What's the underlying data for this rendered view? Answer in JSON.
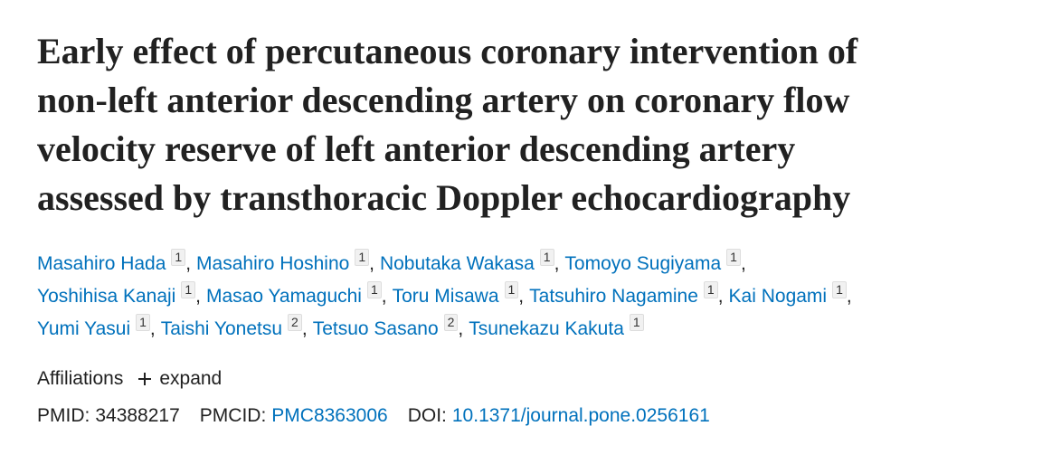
{
  "article": {
    "title_lines": [
      "Early effect of percutaneous coronary intervention of",
      "non-left anterior descending artery on coronary flow",
      "velocity reserve of left anterior descending artery",
      "assessed by transthoracic Doppler echocardiography"
    ],
    "author_separator": ",",
    "author_lines": [
      [
        {
          "name": "Masahiro Hada",
          "affiliation": 1
        },
        {
          "name": "Masahiro Hoshino",
          "affiliation": 1
        },
        {
          "name": "Nobutaka Wakasa",
          "affiliation": 1
        },
        {
          "name": "Tomoyo Sugiyama",
          "affiliation": 1
        }
      ],
      [
        {
          "name": "Yoshihisa Kanaji",
          "affiliation": 1
        },
        {
          "name": "Masao Yamaguchi",
          "affiliation": 1
        },
        {
          "name": "Toru Misawa",
          "affiliation": 1
        },
        {
          "name": "Tatsuhiro Nagamine",
          "affiliation": 1
        },
        {
          "name": "Kai Nogami",
          "affiliation": 1
        }
      ],
      [
        {
          "name": "Yumi Yasui",
          "affiliation": 1
        },
        {
          "name": "Taishi Yonetsu",
          "affiliation": 2
        },
        {
          "name": "Tetsuo Sasano",
          "affiliation": 2
        },
        {
          "name": "Tsunekazu Kakuta",
          "affiliation": 1
        }
      ]
    ],
    "affiliations": {
      "label": "Affiliations",
      "toggle": "expand"
    },
    "identifiers": [
      {
        "label": "PMID:",
        "value": "34388217"
      },
      {
        "label": "PMCID:",
        "value": "PMC8363006"
      },
      {
        "label": "DOI:",
        "value": "10.1371/journal.pone.0256161"
      }
    ]
  }
}
